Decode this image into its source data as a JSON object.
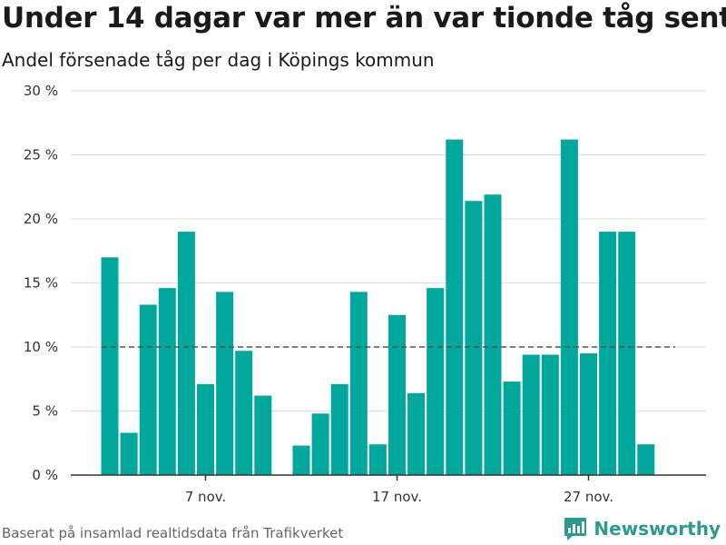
{
  "header": {
    "title": "Under 14 dagar var mer än var tionde tåg sent",
    "subtitle": "Andel försenade tåg per dag i Köpings kommun"
  },
  "footer": {
    "source": "Baserat på insamlad realtidsdata från Trafikverket",
    "brand": "Newsworthy",
    "brand_icon": "bar-chart-logo-icon"
  },
  "colors": {
    "bar": "#00a79d",
    "grid": "#dddddd",
    "axis": "#333333",
    "reference": "#555555",
    "brand": "#2d9a8c"
  },
  "chart_data": {
    "type": "bar",
    "categories": [
      "2023-11-02",
      "2023-11-03",
      "2023-11-04",
      "2023-11-05",
      "2023-11-06",
      "2023-11-07",
      "2023-11-08",
      "2023-11-09",
      "2023-11-10",
      "2023-11-11",
      "2023-11-12",
      "2023-11-13",
      "2023-11-14",
      "2023-11-15",
      "2023-11-16",
      "2023-11-17",
      "2023-11-18",
      "2023-11-19",
      "2023-11-20",
      "2023-11-21",
      "2023-11-22",
      "2023-11-23",
      "2023-11-24",
      "2023-11-25",
      "2023-11-26",
      "2023-11-27",
      "2023-11-28",
      "2023-11-29",
      "2023-11-30",
      "2023-12-01",
      "2023-12-02",
      "2023-12-03"
    ],
    "values": [
      17.0,
      3.3,
      13.3,
      14.6,
      19.0,
      7.1,
      14.3,
      9.7,
      6.2,
      null,
      2.3,
      4.8,
      7.1,
      14.3,
      2.4,
      12.5,
      6.4,
      14.6,
      26.2,
      21.4,
      21.9,
      7.3,
      9.4,
      9.4,
      26.2,
      9.5,
      19.0,
      19.0,
      2.4,
      null,
      null,
      null
    ],
    "ylim": [
      0,
      30
    ],
    "yticks": [
      0,
      5,
      10,
      15,
      20,
      25,
      30
    ],
    "ytick_labels": [
      "0 %",
      "5 %",
      "10 %",
      "15 %",
      "20 %",
      "25 %",
      "30 %"
    ],
    "xticks": [
      {
        "at": "2023-11-07",
        "label": "7 nov."
      },
      {
        "at": "2023-11-17",
        "label": "17 nov."
      },
      {
        "at": "2023-11-27",
        "label": "27 nov."
      }
    ],
    "reference_line": 10,
    "grid": true,
    "legend": "none"
  }
}
